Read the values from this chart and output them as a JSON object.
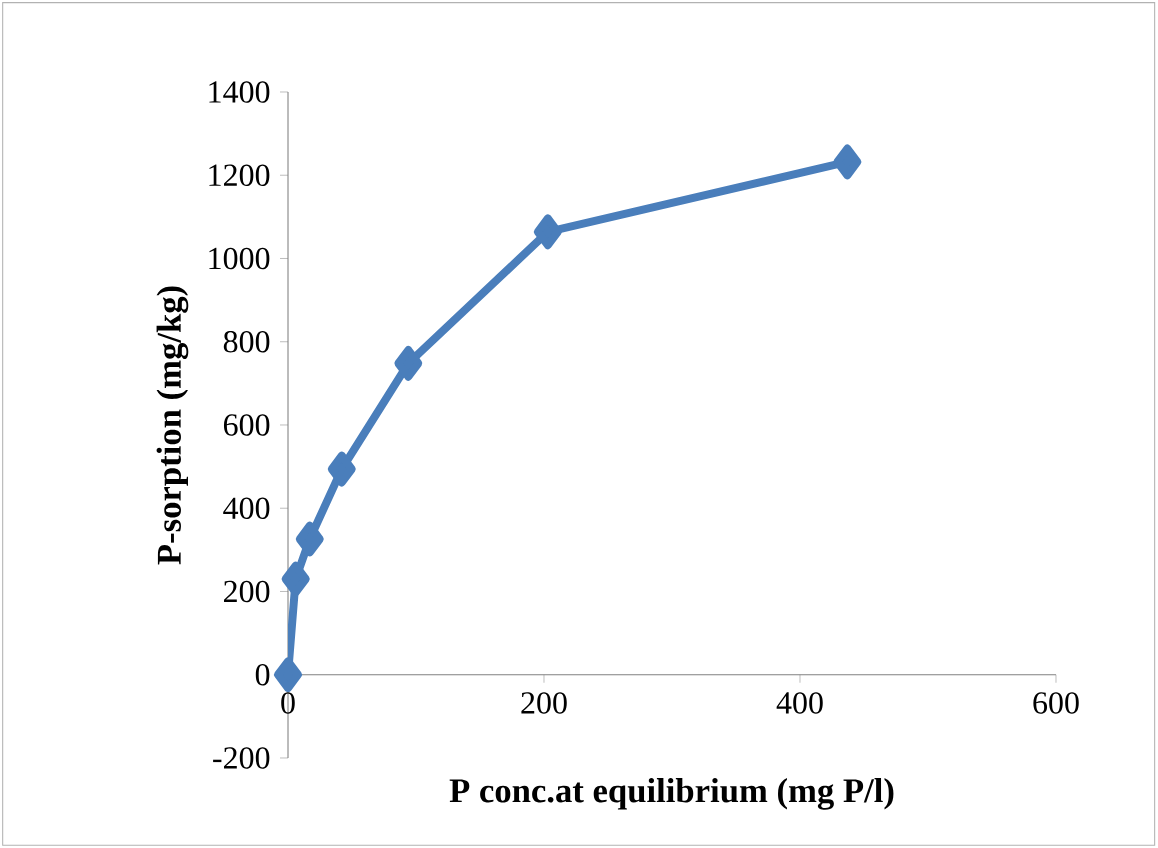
{
  "chart_data": {
    "type": "line",
    "xlabel": "P conc.at equilibrium  (mg P/l)",
    "ylabel": "P-sorption  (mg/kg)",
    "x": [
      0,
      6,
      17,
      42,
      94,
      203,
      437
    ],
    "series": [
      {
        "color": "#4a7ebb",
        "values": [
          0,
          230,
          326,
          494,
          748,
          1064,
          1232
        ]
      }
    ],
    "xlim": [
      0,
      600
    ],
    "xticks": [
      0,
      200,
      400,
      600
    ],
    "ylim": [
      -200,
      1400
    ],
    "yticks": [
      -200,
      0,
      200,
      400,
      600,
      800,
      1000,
      1200,
      1400
    ],
    "grid": false,
    "marker": "diamond",
    "line_style": "solid"
  }
}
